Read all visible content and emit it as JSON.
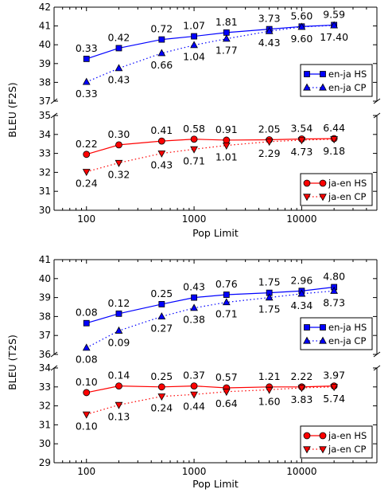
{
  "colors": {
    "en_ja": "#0000ff",
    "ja_en": "#ff0000"
  },
  "chart_data": [
    {
      "type": "line",
      "xscale": "log",
      "xlim": [
        50,
        50000
      ],
      "x": [
        100,
        200,
        500,
        1000,
        2000,
        5000,
        10000,
        20000
      ],
      "xticks": [
        "100",
        "1000",
        "10000"
      ],
      "xlabel": "Pop Limit",
      "ylabel": "BLEU (F2S)",
      "broken_axis": true,
      "legend_position": "right",
      "panels": [
        {
          "ylim": [
            37,
            42
          ],
          "yticks": [
            "37",
            "38",
            "39",
            "40",
            "41",
            "42"
          ],
          "legend": [
            "en-ja HS",
            "en-ja CP"
          ],
          "series": [
            {
              "name": "en-ja HS",
              "style": "solid",
              "marker": "square",
              "color": "en_ja",
              "values": [
                39.25,
                39.82,
                40.28,
                40.45,
                40.65,
                40.83,
                40.97,
                41.05
              ],
              "labels": [
                "0.33",
                "0.42",
                "0.72",
                "1.07",
                "1.81",
                "3.73",
                "5.60",
                "9.59"
              ]
            },
            {
              "name": "en-ja CP",
              "style": "dotted",
              "marker": "triangle-up",
              "color": "en_ja",
              "values": [
                38.02,
                38.75,
                39.55,
                39.98,
                40.32,
                40.72,
                40.95,
                41.03
              ],
              "labels": [
                "0.33",
                "0.43",
                "0.66",
                "1.04",
                "1.77",
                "4.43",
                "9.60",
                "17.40"
              ]
            }
          ]
        },
        {
          "ylim": [
            30,
            35
          ],
          "yticks": [
            "30",
            "31",
            "32",
            "33",
            "34",
            "35"
          ],
          "legend": [
            "ja-en HS",
            "ja-en CP"
          ],
          "series": [
            {
              "name": "ja-en HS",
              "style": "solid",
              "marker": "circle",
              "color": "ja_en",
              "values": [
                32.95,
                33.45,
                33.65,
                33.75,
                33.7,
                33.72,
                33.76,
                33.78
              ],
              "labels": [
                "0.22",
                "0.30",
                "0.41",
                "0.58",
                "0.91",
                "2.05",
                "3.54",
                "6.44"
              ]
            },
            {
              "name": "ja-en CP",
              "style": "dotted",
              "marker": "triangle-down",
              "color": "ja_en",
              "values": [
                32.03,
                32.5,
                33.0,
                33.22,
                33.42,
                33.62,
                33.7,
                33.75
              ],
              "labels": [
                "0.24",
                "0.32",
                "0.43",
                "0.71",
                "1.01",
                "2.29",
                "4.73",
                "9.18"
              ]
            }
          ]
        }
      ]
    },
    {
      "type": "line",
      "xscale": "log",
      "xlim": [
        50,
        50000
      ],
      "x": [
        100,
        200,
        500,
        1000,
        2000,
        5000,
        10000,
        20000
      ],
      "xticks": [
        "100",
        "1000",
        "10000"
      ],
      "xlabel": "Pop Limit",
      "ylabel": "BLEU (T2S)",
      "broken_axis": true,
      "legend_position": "right",
      "panels": [
        {
          "ylim": [
            36,
            41
          ],
          "yticks": [
            "36",
            "37",
            "38",
            "39",
            "40",
            "41"
          ],
          "legend": [
            "en-ja HS",
            "en-ja CP"
          ],
          "series": [
            {
              "name": "en-ja HS",
              "style": "solid",
              "marker": "square",
              "color": "en_ja",
              "values": [
                37.65,
                38.15,
                38.65,
                39.0,
                39.15,
                39.25,
                39.35,
                39.55
              ],
              "labels": [
                "0.08",
                "0.12",
                "0.25",
                "0.43",
                "0.76",
                "1.75",
                "2.96",
                "4.80"
              ]
            },
            {
              "name": "en-ja CP",
              "style": "dotted",
              "marker": "triangle-up",
              "color": "en_ja",
              "values": [
                36.35,
                37.25,
                38.0,
                38.45,
                38.75,
                39.0,
                39.2,
                39.35
              ],
              "labels": [
                "0.08",
                "0.09",
                "0.27",
                "0.38",
                "0.71",
                "1.75",
                "4.34",
                "8.73"
              ]
            }
          ]
        },
        {
          "ylim": [
            29,
            34
          ],
          "yticks": [
            "29",
            "30",
            "31",
            "32",
            "33",
            "34"
          ],
          "legend": [
            "ja-en HS",
            "ja-en CP"
          ],
          "series": [
            {
              "name": "ja-en HS",
              "style": "solid",
              "marker": "circle",
              "color": "ja_en",
              "values": [
                32.7,
                33.05,
                33.0,
                33.05,
                32.95,
                33.0,
                33.0,
                33.05
              ],
              "labels": [
                "0.10",
                "0.14",
                "0.25",
                "0.37",
                "0.57",
                "1.21",
                "2.22",
                "3.97"
              ]
            },
            {
              "name": "ja-en CP",
              "style": "dotted",
              "marker": "triangle-down",
              "color": "ja_en",
              "values": [
                31.55,
                32.05,
                32.5,
                32.6,
                32.75,
                32.85,
                32.95,
                33.0
              ],
              "labels": [
                "0.10",
                "0.13",
                "0.24",
                "0.44",
                "0.64",
                "1.60",
                "3.83",
                "5.74"
              ]
            }
          ]
        }
      ]
    }
  ]
}
